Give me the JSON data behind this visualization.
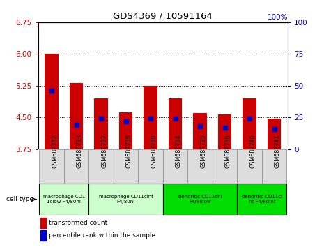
{
  "title": "GDS4369 / 10591164",
  "samples": [
    "GSM687732",
    "GSM687733",
    "GSM687737",
    "GSM687738",
    "GSM687739",
    "GSM687734",
    "GSM687735",
    "GSM687736",
    "GSM687740",
    "GSM687741"
  ],
  "transformed_counts": [
    6.0,
    5.32,
    4.95,
    4.62,
    5.25,
    4.95,
    4.6,
    4.58,
    4.95,
    4.47
  ],
  "percentile_ranks": [
    46,
    19,
    24,
    22,
    24,
    24,
    18,
    17,
    24,
    16
  ],
  "ylim": [
    3.75,
    6.75
  ],
  "yticks_left": [
    3.75,
    4.5,
    5.25,
    6.0,
    6.75
  ],
  "yticks_right": [
    0,
    25,
    50,
    75,
    100
  ],
  "bar_color": "#cc0000",
  "dot_color": "#0000cc",
  "cell_types": [
    {
      "label": "macrophage CD1\n1clow F4/80hi",
      "start": 0,
      "end": 2,
      "color": "#ccffcc"
    },
    {
      "label": "macrophage CD11cint\nF4/80hi",
      "start": 2,
      "end": 5,
      "color": "#ccffcc"
    },
    {
      "label": "dendritic CD11chi\nF4/80low",
      "start": 5,
      "end": 8,
      "color": "#00dd00"
    },
    {
      "label": "dendritic CD11ci\nnt F4/80int",
      "start": 8,
      "end": 10,
      "color": "#00dd00"
    }
  ],
  "legend_red": "transformed count",
  "legend_blue": "percentile rank within the sample",
  "cell_type_label": "cell type",
  "right_axis_label": "100%"
}
